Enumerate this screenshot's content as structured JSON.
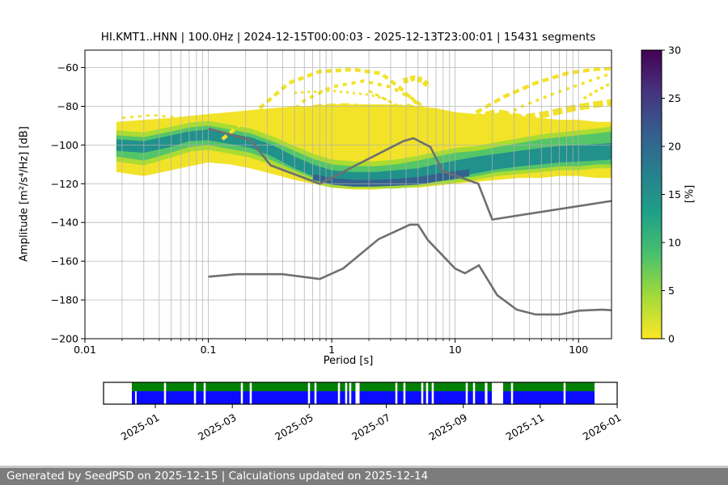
{
  "footer": {
    "text": "Generated by SeedPSD on 2025-12-15 | Calculations updated on 2025-12-14"
  },
  "chart_data": {
    "type": "heatmap",
    "title": "HI.KMT1..HNN | 100.0Hz | 2024-12-15T00:00:03 - 2025-12-13T23:00:01 | 15431 segments",
    "meta": {
      "stream": "HI.KMT1..HNN",
      "sampling_rate": "100.0Hz",
      "start": "2024-12-15T00:00:03",
      "end": "2025-12-13T23:00:01",
      "segments": 15431
    },
    "xlabel": "Period [s]",
    "ylabel": "Amplitude [m²/s⁴/Hz] [dB]",
    "xscale": "log",
    "xlim": [
      0.01,
      185
    ],
    "ylim": [
      -200,
      -51
    ],
    "xticks": [
      0.01,
      0.1,
      1,
      10,
      100
    ],
    "xtick_labels": [
      "0.01",
      "0.1",
      "1",
      "10",
      "100"
    ],
    "yticks": [
      -60,
      -80,
      -100,
      -120,
      -140,
      -160,
      -180,
      -200
    ],
    "grid": true,
    "grid_color": "#b0b0b0",
    "colorbar": {
      "label": "[%]",
      "lim": [
        0,
        30
      ],
      "ticks": [
        0,
        5,
        10,
        15,
        20,
        25,
        30
      ],
      "colormap": "viridis (reversed: 0%=yellow, 30%=dark purple)",
      "stops": [
        {
          "o": 0.0,
          "c": "#440154"
        },
        {
          "o": 0.14,
          "c": "#46327e"
        },
        {
          "o": 0.28,
          "c": "#365c8d"
        },
        {
          "o": 0.42,
          "c": "#277f8e"
        },
        {
          "o": 0.57,
          "c": "#1fa187"
        },
        {
          "o": 0.71,
          "c": "#4ac16d"
        },
        {
          "o": 0.85,
          "c": "#a0da39"
        },
        {
          "o": 1.0,
          "c": "#fde725"
        }
      ]
    },
    "ppsd_bands": [
      {
        "name": "yellow-envelope",
        "color": "#f2e328",
        "periods": [
          0.018,
          0.03,
          0.05,
          0.07,
          0.1,
          0.15,
          0.22,
          0.33,
          0.5,
          0.7,
          1,
          1.5,
          2.2,
          3.3,
          5,
          7,
          10,
          15,
          22,
          33,
          50,
          70,
          100,
          140,
          185
        ],
        "hi": [
          -88,
          -87,
          -86,
          -85,
          -84,
          -83,
          -82,
          -81,
          -80,
          -80,
          -79,
          -79,
          -79,
          -79,
          -80,
          -81,
          -83,
          -84,
          -84,
          -85,
          -86,
          -87,
          -87,
          -88,
          -88
        ],
        "lo": [
          -114,
          -116,
          -113,
          -111,
          -109,
          -110,
          -112,
          -115,
          -118,
          -120,
          -122,
          -123,
          -123,
          -122,
          -122,
          -121,
          -120,
          -119,
          -118,
          -117,
          -117,
          -116,
          -116,
          -117,
          -117
        ]
      },
      {
        "name": "lime-band",
        "color": "#aadc32",
        "periods": [
          0.018,
          0.03,
          0.05,
          0.07,
          0.1,
          0.15,
          0.22,
          0.33,
          0.5,
          0.7,
          1,
          1.5,
          2.2,
          3.3,
          5,
          7,
          10,
          15,
          22,
          33,
          50,
          70,
          100,
          140,
          185
        ],
        "hi": [
          -92.5,
          -93.5,
          -90.5,
          -88.5,
          -87.5,
          -89.5,
          -91.5,
          -95.5,
          -100.5,
          -104.5,
          -107.5,
          -108.5,
          -108.5,
          -107.5,
          -105.5,
          -103.5,
          -101.5,
          -100.5,
          -98.5,
          -96.5,
          -94.5,
          -93.5,
          -92.5,
          -91.5,
          -90.5
        ],
        "lo": [
          -108.5,
          -110.5,
          -106.5,
          -103.5,
          -102.5,
          -104.5,
          -106.5,
          -110.5,
          -115.5,
          -119.5,
          -122,
          -122.5,
          -122.5,
          -122.5,
          -121.5,
          -120.5,
          -119.5,
          -118,
          -116,
          -115,
          -114,
          -113,
          -113,
          -112,
          -112
        ]
      },
      {
        "name": "green-band",
        "color": "#54c568",
        "periods": [
          0.018,
          0.03,
          0.05,
          0.07,
          0.1,
          0.15,
          0.22,
          0.33,
          0.5,
          0.7,
          1,
          1.5,
          2.2,
          3.3,
          5,
          7,
          10,
          15,
          22,
          33,
          50,
          70,
          100,
          140,
          185
        ],
        "hi": [
          -95,
          -96,
          -93,
          -91,
          -90,
          -92,
          -94,
          -98,
          -103,
          -107,
          -110,
          -111,
          -111,
          -110,
          -108,
          -106,
          -104,
          -103,
          -101,
          -99,
          -97,
          -96,
          -95,
          -94,
          -93
        ],
        "lo": [
          -106,
          -108,
          -104,
          -101,
          -100,
          -102,
          -104,
          -108,
          -113,
          -117,
          -120,
          -121,
          -121,
          -121,
          -120,
          -119,
          -118,
          -116,
          -114,
          -113,
          -112,
          -111,
          -111,
          -110,
          -110
        ]
      },
      {
        "name": "teal-core",
        "color": "#21918c",
        "periods": [
          0.018,
          0.03,
          0.05,
          0.07,
          0.1,
          0.15,
          0.22,
          0.33,
          0.5,
          0.7,
          1,
          1.5,
          2.2,
          3.3,
          5,
          7,
          10,
          15,
          22,
          33,
          50,
          70,
          100,
          140,
          185
        ],
        "hi": [
          -97,
          -98,
          -95,
          -93,
          -92,
          -94,
          -96,
          -100,
          -106,
          -110,
          -113,
          -114,
          -114,
          -113,
          -112,
          -110,
          -108,
          -106,
          -104.5,
          -103,
          -101.5,
          -100.5,
          -100,
          -99.5,
          -99
        ],
        "lo": [
          -103,
          -104,
          -101,
          -98,
          -97.5,
          -99.5,
          -101.5,
          -106,
          -112,
          -116,
          -119.5,
          -120.5,
          -120.5,
          -120.5,
          -119.5,
          -118,
          -116.5,
          -114.5,
          -112.5,
          -111,
          -110,
          -109,
          -108.5,
          -108,
          -107.5
        ]
      },
      {
        "name": "navy-core",
        "color": "#33628e",
        "periods": [
          0.7,
          1,
          1.5,
          2.2,
          3.3,
          5,
          7,
          10,
          13
        ],
        "hi": [
          -115,
          -117,
          -118,
          -118,
          -117.5,
          -116.5,
          -115,
          -113.5,
          -112.5
        ],
        "lo": [
          -118,
          -120.5,
          -121.5,
          -121.5,
          -121,
          -120.5,
          -119,
          -117.5,
          -116
        ]
      }
    ],
    "transient_streaks": {
      "color": "#f2e328",
      "lines": [
        {
          "w": 4.5,
          "dash": "7 5",
          "pts": [
            [
              0.13,
              -97
            ],
            [
              0.25,
              -82
            ],
            [
              0.45,
              -68
            ],
            [
              0.8,
              -62
            ],
            [
              1.5,
              -61
            ],
            [
              2.5,
              -63
            ],
            [
              3.5,
              -70
            ],
            [
              5,
              -79
            ],
            [
              7,
              -87
            ],
            [
              9,
              -91
            ]
          ]
        },
        {
          "w": 4,
          "dash": "5 6",
          "pts": [
            [
              0.35,
              -90
            ],
            [
              0.6,
              -77
            ],
            [
              1,
              -70
            ],
            [
              1.8,
              -67
            ],
            [
              3,
              -70
            ],
            [
              4.5,
              -76
            ],
            [
              6,
              -82
            ]
          ]
        },
        {
          "w": 4.5,
          "dash": "8 5",
          "pts": [
            [
              9,
              -92
            ],
            [
              15,
              -83
            ],
            [
              25,
              -75
            ],
            [
              45,
              -68
            ],
            [
              80,
              -63
            ],
            [
              130,
              -61
            ],
            [
              185,
              -60.5
            ]
          ]
        },
        {
          "w": 3.5,
          "dash": "4 6",
          "pts": [
            [
              20,
              -88
            ],
            [
              35,
              -80
            ],
            [
              60,
              -74
            ],
            [
              100,
              -69
            ],
            [
              150,
              -65
            ],
            [
              185,
              -63
            ]
          ]
        },
        {
          "w": 7,
          "dash": "6 3",
          "pts": [
            [
              3.8,
              -67
            ],
            [
              4.6,
              -65.5
            ],
            [
              5.4,
              -66.5
            ],
            [
              6.2,
              -70
            ]
          ]
        },
        {
          "w": 8,
          "dash": "12 5",
          "pts": [
            [
              0.2,
              -89
            ],
            [
              0.4,
              -84
            ],
            [
              0.8,
              -80.5
            ],
            [
              1.5,
              -80
            ],
            [
              2.5,
              -84
            ],
            [
              4,
              -80
            ],
            [
              6,
              -84
            ],
            [
              9,
              -88
            ],
            [
              14,
              -86
            ],
            [
              22,
              -83
            ],
            [
              35,
              -86
            ],
            [
              55,
              -84
            ],
            [
              90,
              -81
            ],
            [
              140,
              -79
            ],
            [
              185,
              -78
            ]
          ]
        },
        {
          "w": 3,
          "dash": "3 5",
          "pts": [
            [
              0.5,
              -73
            ],
            [
              1,
              -72
            ],
            [
              2,
              -74
            ],
            [
              3,
              -77
            ]
          ]
        },
        {
          "w": 3,
          "dash": "4 6",
          "pts": [
            [
              0.02,
              -86
            ],
            [
              0.035,
              -84.5
            ],
            [
              0.06,
              -86
            ],
            [
              0.09,
              -85
            ]
          ]
        },
        {
          "w": 3,
          "dash": "3 4",
          "pts": [
            [
              0.12,
              -88
            ],
            [
              0.2,
              -85
            ],
            [
              0.35,
              -87
            ]
          ]
        },
        {
          "w": 3,
          "dash": "5 4",
          "pts": [
            [
              2,
              -72
            ],
            [
              3.5,
              -80
            ],
            [
              6,
              -90
            ],
            [
              8.5,
              -94
            ]
          ]
        },
        {
          "w": 3.5,
          "dash": "4 4",
          "pts": [
            [
              110,
              -76
            ],
            [
              150,
              -71
            ],
            [
              185,
              -68
            ]
          ]
        },
        {
          "w": 3,
          "dash": "3 6",
          "pts": [
            [
              8,
              -95
            ],
            [
              12,
              -90
            ],
            [
              18,
              -88
            ],
            [
              28,
              -90
            ]
          ]
        },
        {
          "w": 5,
          "dash": "9 4",
          "pts": [
            [
              10,
              -90
            ],
            [
              16,
              -86
            ],
            [
              24,
              -84
            ],
            [
              33,
              -86
            ],
            [
              45,
              -89
            ]
          ]
        }
      ]
    },
    "noise_models": {
      "color": "#6f6f6f",
      "width": 2.6,
      "nhnm": [
        [
          0.1,
          -91.5
        ],
        [
          0.22,
          -97.4
        ],
        [
          0.32,
          -110.5
        ],
        [
          0.8,
          -120.0
        ],
        [
          3.8,
          -98.0
        ],
        [
          4.6,
          -96.5
        ],
        [
          6.3,
          -101.0
        ],
        [
          7.9,
          -113.5
        ],
        [
          15.4,
          -120.0
        ],
        [
          20.0,
          -138.5
        ],
        [
          185,
          -128.9
        ]
      ],
      "nlnm": [
        [
          0.1,
          -168.0
        ],
        [
          0.17,
          -166.7
        ],
        [
          0.4,
          -166.7
        ],
        [
          0.8,
          -169.2
        ],
        [
          1.24,
          -163.7
        ],
        [
          2.4,
          -148.6
        ],
        [
          4.3,
          -141.1
        ],
        [
          5.0,
          -141.1
        ],
        [
          6.0,
          -149.0
        ],
        [
          10.0,
          -163.8
        ],
        [
          12.0,
          -166.2
        ],
        [
          15.6,
          -162.1
        ],
        [
          21.9,
          -177.5
        ],
        [
          31.6,
          -185.0
        ],
        [
          45.0,
          -187.5
        ],
        [
          70.0,
          -187.5
        ],
        [
          101.0,
          -185.5
        ],
        [
          154.0,
          -185.0
        ],
        [
          185.0,
          -185.3
        ]
      ]
    },
    "timeline": {
      "green": "#008000",
      "blue": "#0b0bff",
      "coverage": [
        0.0551,
        0.9559
      ],
      "ticks": [
        {
          "label": "2025-01",
          "f": 0.1008
        },
        {
          "label": "2025-03",
          "f": 0.2507
        },
        {
          "label": "2025-05",
          "f": 0.4005
        },
        {
          "label": "2025-07",
          "f": 0.5504
        },
        {
          "label": "2025-09",
          "f": 0.7003
        },
        {
          "label": "2025-11",
          "f": 0.8501
        },
        {
          "label": "2026-01",
          "f": 1.0
        }
      ],
      "gaps": [
        {
          "f": 0.1197,
          "w": 0.004
        },
        {
          "f": 0.178,
          "w": 0.004
        },
        {
          "f": 0.1969,
          "w": 0.004
        },
        {
          "f": 0.2693,
          "w": 0.004
        },
        {
          "f": 0.2866,
          "w": 0.004
        },
        {
          "f": 0.4,
          "w": 0.004
        },
        {
          "f": 0.4126,
          "w": 0.004
        },
        {
          "f": 0.4583,
          "w": 0.004
        },
        {
          "f": 0.4724,
          "w": 0.004
        },
        {
          "f": 0.4803,
          "w": 0.004
        },
        {
          "f": 0.4945,
          "w": 0.008
        },
        {
          "f": 0.5701,
          "w": 0.004
        },
        {
          "f": 0.5858,
          "w": 0.004
        },
        {
          "f": 0.6205,
          "w": 0.004
        },
        {
          "f": 0.6299,
          "w": 0.004
        },
        {
          "f": 0.6409,
          "w": 0.004
        },
        {
          "f": 0.7071,
          "w": 0.004
        },
        {
          "f": 0.7213,
          "w": 0.004
        },
        {
          "f": 0.7449,
          "w": 0.005
        },
        {
          "f": 0.767,
          "w": 0.022
        },
        {
          "f": 0.7953,
          "w": 0.004
        },
        {
          "f": 0.8976,
          "w": 0.004
        }
      ],
      "blue_only_gaps": [
        {
          "f": 0.063,
          "w": 0.003
        }
      ]
    }
  }
}
